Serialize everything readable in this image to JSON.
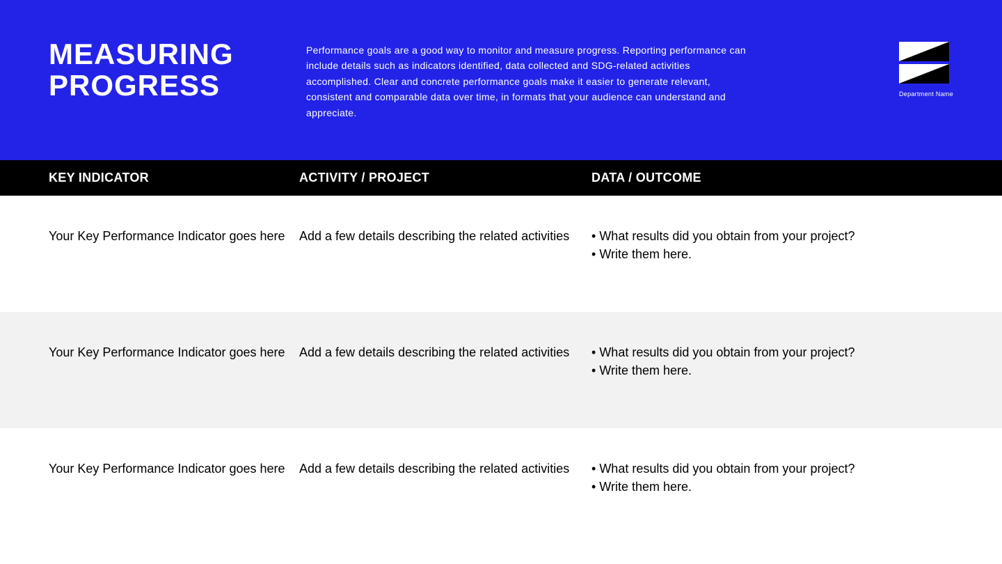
{
  "header": {
    "title": "MEASURING PROGRESS",
    "description": "Performance goals are a good way to monitor and measure progress. Reporting performance can include details such as indicators identified, data collected and SDG-related activities accomplished. Clear and concrete performance goals make it easier to generate relevant, consistent and comparable data over time, in formats that your audience can understand and appreciate.",
    "department_label": "Department Name",
    "background_color": "#2323e8",
    "text_color": "#ffffff",
    "title_fontsize": 42,
    "desc_fontsize": 14
  },
  "logo": {
    "bg_color": "#000000",
    "triangle_color": "#ffffff"
  },
  "table": {
    "header_bg": "#000000",
    "header_text_color": "#ffffff",
    "alt_row_bg": "#f2f2f2",
    "columns": [
      {
        "label": "KEY INDICATOR"
      },
      {
        "label": "ACTIVITY / PROJECT"
      },
      {
        "label": "DATA / OUTCOME"
      }
    ],
    "rows": [
      {
        "indicator": "Your Key Performance Indicator goes here",
        "activity": "Add a few details describing the related activities",
        "outcome": [
          "What results did you obtain from your project?",
          "Write them here."
        ]
      },
      {
        "indicator": "Your Key Performance Indicator goes here",
        "activity": "Add a few details describing the related activities",
        "outcome": [
          "What results did you obtain from your project?",
          "Write them here."
        ]
      },
      {
        "indicator": "Your Key Performance Indicator goes here",
        "activity": "Add a few details describing the related activities",
        "outcome": [
          "What results did you obtain from your project?",
          "Write them here."
        ]
      }
    ]
  }
}
